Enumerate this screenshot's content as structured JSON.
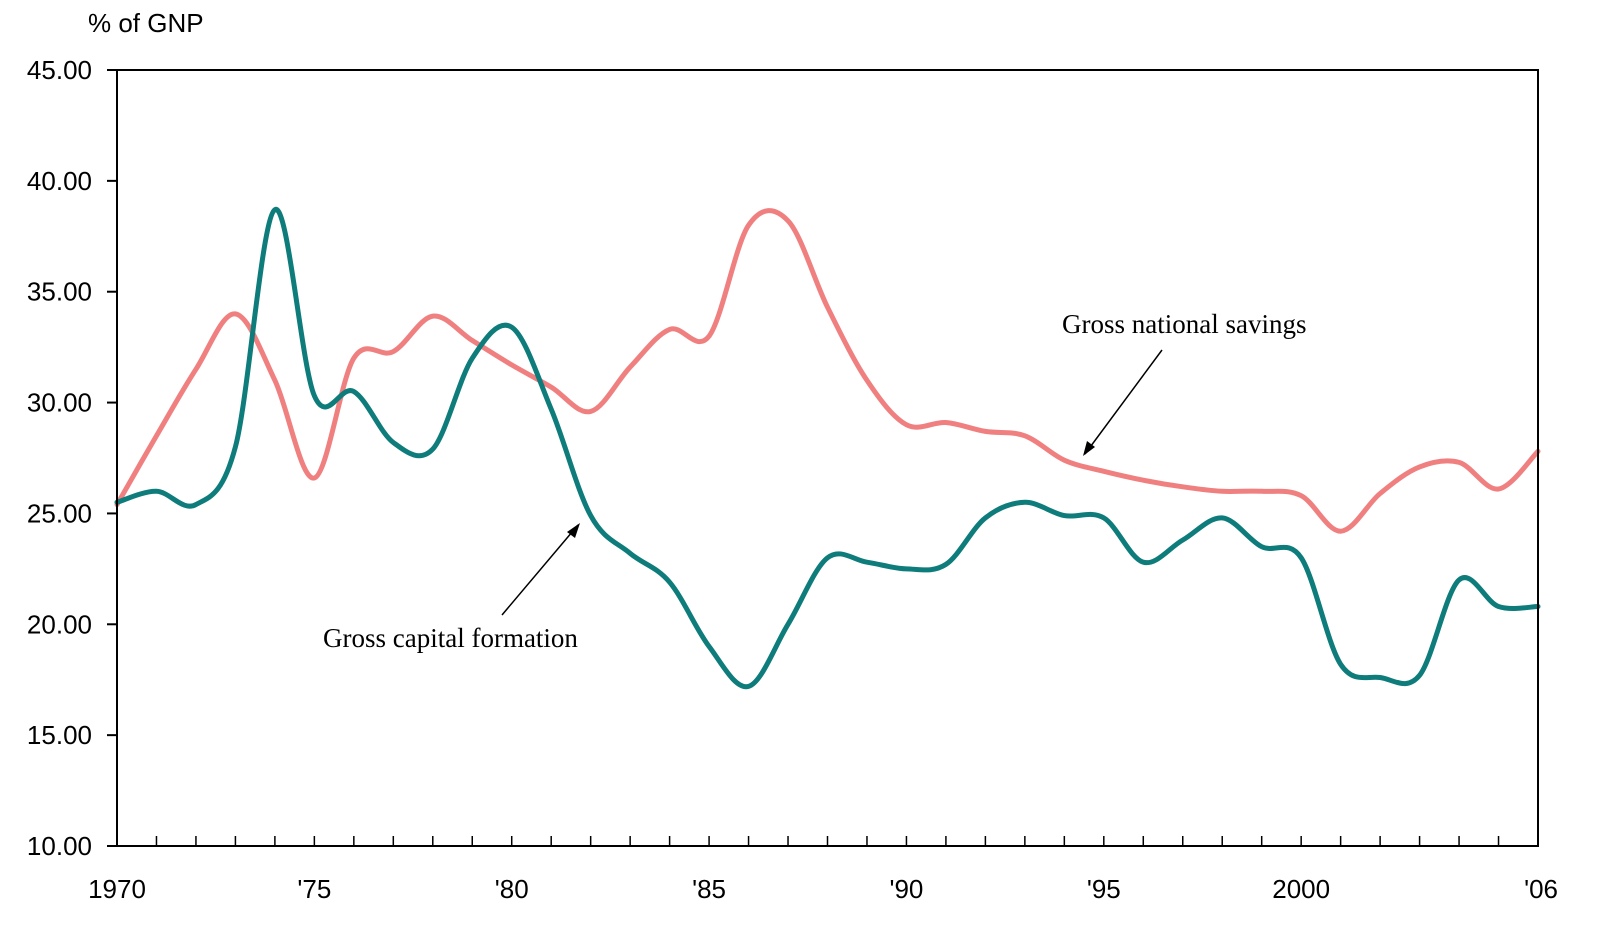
{
  "chart_data": {
    "type": "line",
    "ylabel": "% of GNP",
    "ylim": [
      10,
      45
    ],
    "yticks": [
      "10.00",
      "15.00",
      "20.00",
      "25.00",
      "30.00",
      "35.00",
      "40.00",
      "45.00"
    ],
    "xlim": [
      1970,
      2006
    ],
    "xtick_labels": [
      {
        "x": 1970,
        "label": "1970"
      },
      {
        "x": 1975,
        "label": "'75"
      },
      {
        "x": 1980,
        "label": "'80"
      },
      {
        "x": 1985,
        "label": "'85"
      },
      {
        "x": 1990,
        "label": "'90"
      },
      {
        "x": 1995,
        "label": "'95"
      },
      {
        "x": 2000,
        "label": "2000"
      },
      {
        "x": 2006,
        "label": "'06"
      }
    ],
    "x": [
      1970,
      1971,
      1972,
      1973,
      1974,
      1975,
      1976,
      1977,
      1978,
      1979,
      1980,
      1981,
      1982,
      1983,
      1984,
      1985,
      1986,
      1987,
      1988,
      1989,
      1990,
      1991,
      1992,
      1993,
      1994,
      1995,
      1996,
      1997,
      1998,
      1999,
      2000,
      2001,
      2002,
      2003,
      2004,
      2005,
      2006
    ],
    "series": [
      {
        "name": "Gross national savings",
        "color": "#f08080",
        "values": [
          25.4,
          28.5,
          31.5,
          34.0,
          31.0,
          26.6,
          32.0,
          32.3,
          33.9,
          32.8,
          31.7,
          30.7,
          29.6,
          31.6,
          33.3,
          33.0,
          38.0,
          38.2,
          34.3,
          31.0,
          29.0,
          29.1,
          28.7,
          28.5,
          27.4,
          26.9,
          26.5,
          26.2,
          26.0,
          26.0,
          25.8,
          24.2,
          25.9,
          27.1,
          27.3,
          26.1,
          27.8
        ]
      },
      {
        "name": "Gross capital formation",
        "color": "#0e7c7b",
        "values": [
          25.5,
          26.0,
          25.4,
          28.0,
          38.7,
          30.3,
          30.5,
          28.2,
          27.9,
          32.0,
          33.4,
          29.7,
          24.9,
          23.2,
          21.9,
          19.0,
          17.2,
          20.0,
          23.0,
          22.8,
          22.5,
          22.7,
          24.8,
          25.5,
          24.9,
          24.8,
          22.8,
          23.8,
          24.8,
          23.5,
          23.0,
          18.2,
          17.6,
          17.7,
          22.0,
          20.8,
          20.8
        ]
      }
    ],
    "annotations": [
      {
        "text": "Gross national savings",
        "series": 0
      },
      {
        "text": "Gross capital formation",
        "series": 1
      }
    ]
  }
}
